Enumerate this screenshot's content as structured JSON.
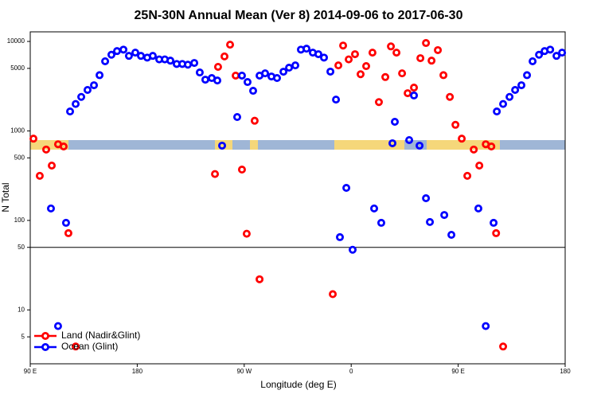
{
  "chart_data": {
    "type": "scatter",
    "title": "25N-30N Annual Mean (Ver 8)   2014-09-06 to 2017-06-30",
    "x_label": "Longitude (deg E)",
    "y_label": "N Total",
    "log_y": true,
    "xlim": [
      90,
      540
    ],
    "ylim": [
      2.5,
      12800
    ],
    "xticks": [
      {
        "value": 90,
        "label": "90 E"
      },
      180,
      {
        "value": 270,
        "label": "90 W"
      },
      {
        "value": 360,
        "label": "0"
      },
      {
        "value": 450,
        "label": "90 E"
      },
      {
        "value": 540,
        "label": "180"
      }
    ],
    "yticks": [
      5,
      10,
      50,
      100,
      500,
      1000,
      5000,
      10000
    ],
    "hline": 50,
    "legend": "bottom-left",
    "series": [
      {
        "name": "Land (Nadir&Glint)",
        "color": "#ff0000",
        "x": [
          92.7,
          98.0,
          103.4,
          108.1,
          113.4,
          118.1,
          122.1,
          128.2,
          245.4,
          248.0,
          253.4,
          258.1,
          262.8,
          268.1,
          272.1,
          278.8,
          282.9,
          344.5,
          349.2,
          353.2,
          357.9,
          363.2,
          367.9,
          372.6,
          377.9,
          383.3,
          388.7,
          393.4,
          398.1,
          402.8,
          407.5,
          412.8,
          418.2,
          422.9,
          427.6,
          432.9,
          437.6,
          443.0,
          447.7,
          453.0,
          457.7,
          463.1,
          467.8,
          473.2,
          477.9,
          481.9,
          487.8
        ],
        "values": [
          820,
          315,
          620,
          410,
          710,
          670,
          72,
          3.9,
          330,
          5200,
          6800,
          9200,
          4150,
          370,
          71,
          1300,
          22,
          15,
          5400,
          9000,
          6300,
          7200,
          4300,
          5300,
          7500,
          2100,
          4000,
          8800,
          7500,
          4400,
          2640,
          3050,
          6500,
          9600,
          6100,
          8000,
          4200,
          2400,
          1170,
          820,
          315,
          620,
          410,
          710,
          670,
          72,
          3.9
        ]
      },
      {
        "name": "Ocean (Glint)",
        "color": "#0000ff",
        "x": [
          107.4,
          113.4,
          120.1,
          123.5,
          128.2,
          132.9,
          138.2,
          143.6,
          148.3,
          153.0,
          158.3,
          163.0,
          168.4,
          173.0,
          178.4,
          183.1,
          188.4,
          193.1,
          198.5,
          203.2,
          207.9,
          213.2,
          217.9,
          222.6,
          228.0,
          232.6,
          237.3,
          242.7,
          247.4,
          251.4,
          264.1,
          268.1,
          272.8,
          277.5,
          282.9,
          287.6,
          292.9,
          297.6,
          303.0,
          307.7,
          313.0,
          317.7,
          322.4,
          327.7,
          332.4,
          337.1,
          342.5,
          347.2,
          350.5,
          355.9,
          361.2,
          379.3,
          385.3,
          394.7,
          396.7,
          408.8,
          412.8,
          417.5,
          422.9,
          426.2,
          438.3,
          444.3,
          467.0,
          473.2,
          479.8,
          482.5,
          487.8,
          493.2,
          497.9,
          503.2,
          507.9,
          512.6,
          518.0,
          522.7,
          527.4,
          532.7,
          537.4
        ],
        "values": [
          136,
          6.6,
          94,
          1650,
          2000,
          2400,
          2870,
          3240,
          4200,
          6000,
          7100,
          7800,
          8100,
          6900,
          7500,
          6900,
          6600,
          6900,
          6300,
          6300,
          6100,
          5600,
          5600,
          5500,
          5750,
          4500,
          3740,
          3900,
          3660,
          685,
          1430,
          4150,
          3520,
          2810,
          4150,
          4400,
          4060,
          3900,
          4590,
          5090,
          5400,
          8100,
          8300,
          7500,
          7200,
          6600,
          4600,
          2240,
          65,
          231,
          47,
          136,
          94,
          728,
          1265,
          790,
          2490,
          685,
          177,
          96,
          115,
          69,
          136,
          6.6,
          94,
          1650,
          2000,
          2400,
          2870,
          3240,
          4200,
          6000,
          7100,
          7800,
          8100,
          6900,
          7500
        ]
      }
    ]
  }
}
